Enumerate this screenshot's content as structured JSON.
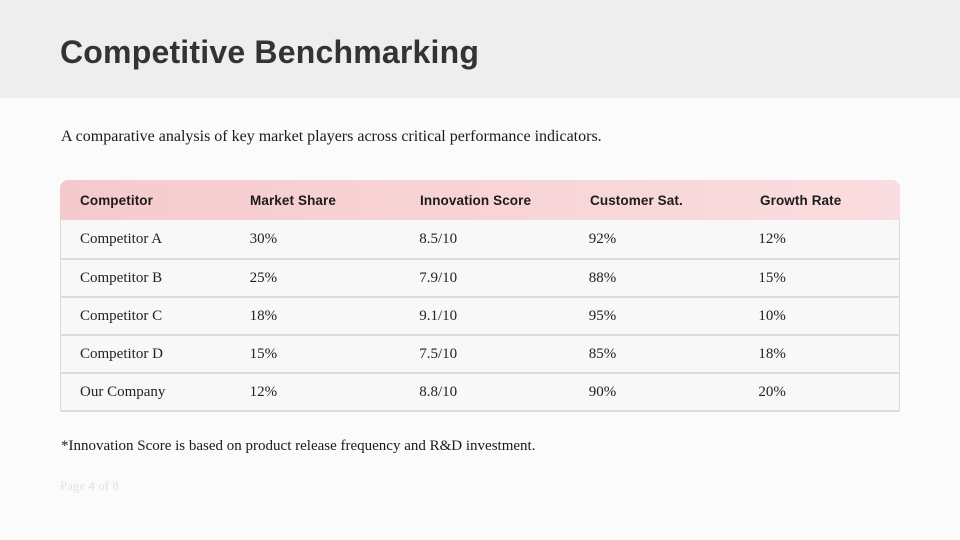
{
  "page": {
    "bg": "#fbfbfb",
    "page_number": "Page 4 of 8"
  },
  "header": {
    "title": "Competitive Benchmarking",
    "bg": "#eeeeee",
    "title_color": "#333333"
  },
  "intro": "A comparative analysis of key market players across critical performance indicators.",
  "table": {
    "header_bg_left": "#f5cacd",
    "header_bg_right": "#fadde0",
    "row_bg": "#f8f8f8",
    "border_color": "#dcdcdc",
    "columns": [
      "Competitor",
      "Market Share",
      "Innovation Score",
      "Customer Sat.",
      "Growth Rate"
    ],
    "rows": [
      [
        "Competitor A",
        "30%",
        "8.5/10",
        "92%",
        "12%"
      ],
      [
        "Competitor B",
        "25%",
        "7.9/10",
        "88%",
        "15%"
      ],
      [
        "Competitor C",
        "18%",
        "9.1/10",
        "95%",
        "10%"
      ],
      [
        "Competitor D",
        "15%",
        "7.5/10",
        "85%",
        "18%"
      ],
      [
        "Our Company",
        "12%",
        "8.8/10",
        "90%",
        "20%"
      ]
    ]
  },
  "footnote": "*Innovation Score is based on product release frequency and R&D investment."
}
